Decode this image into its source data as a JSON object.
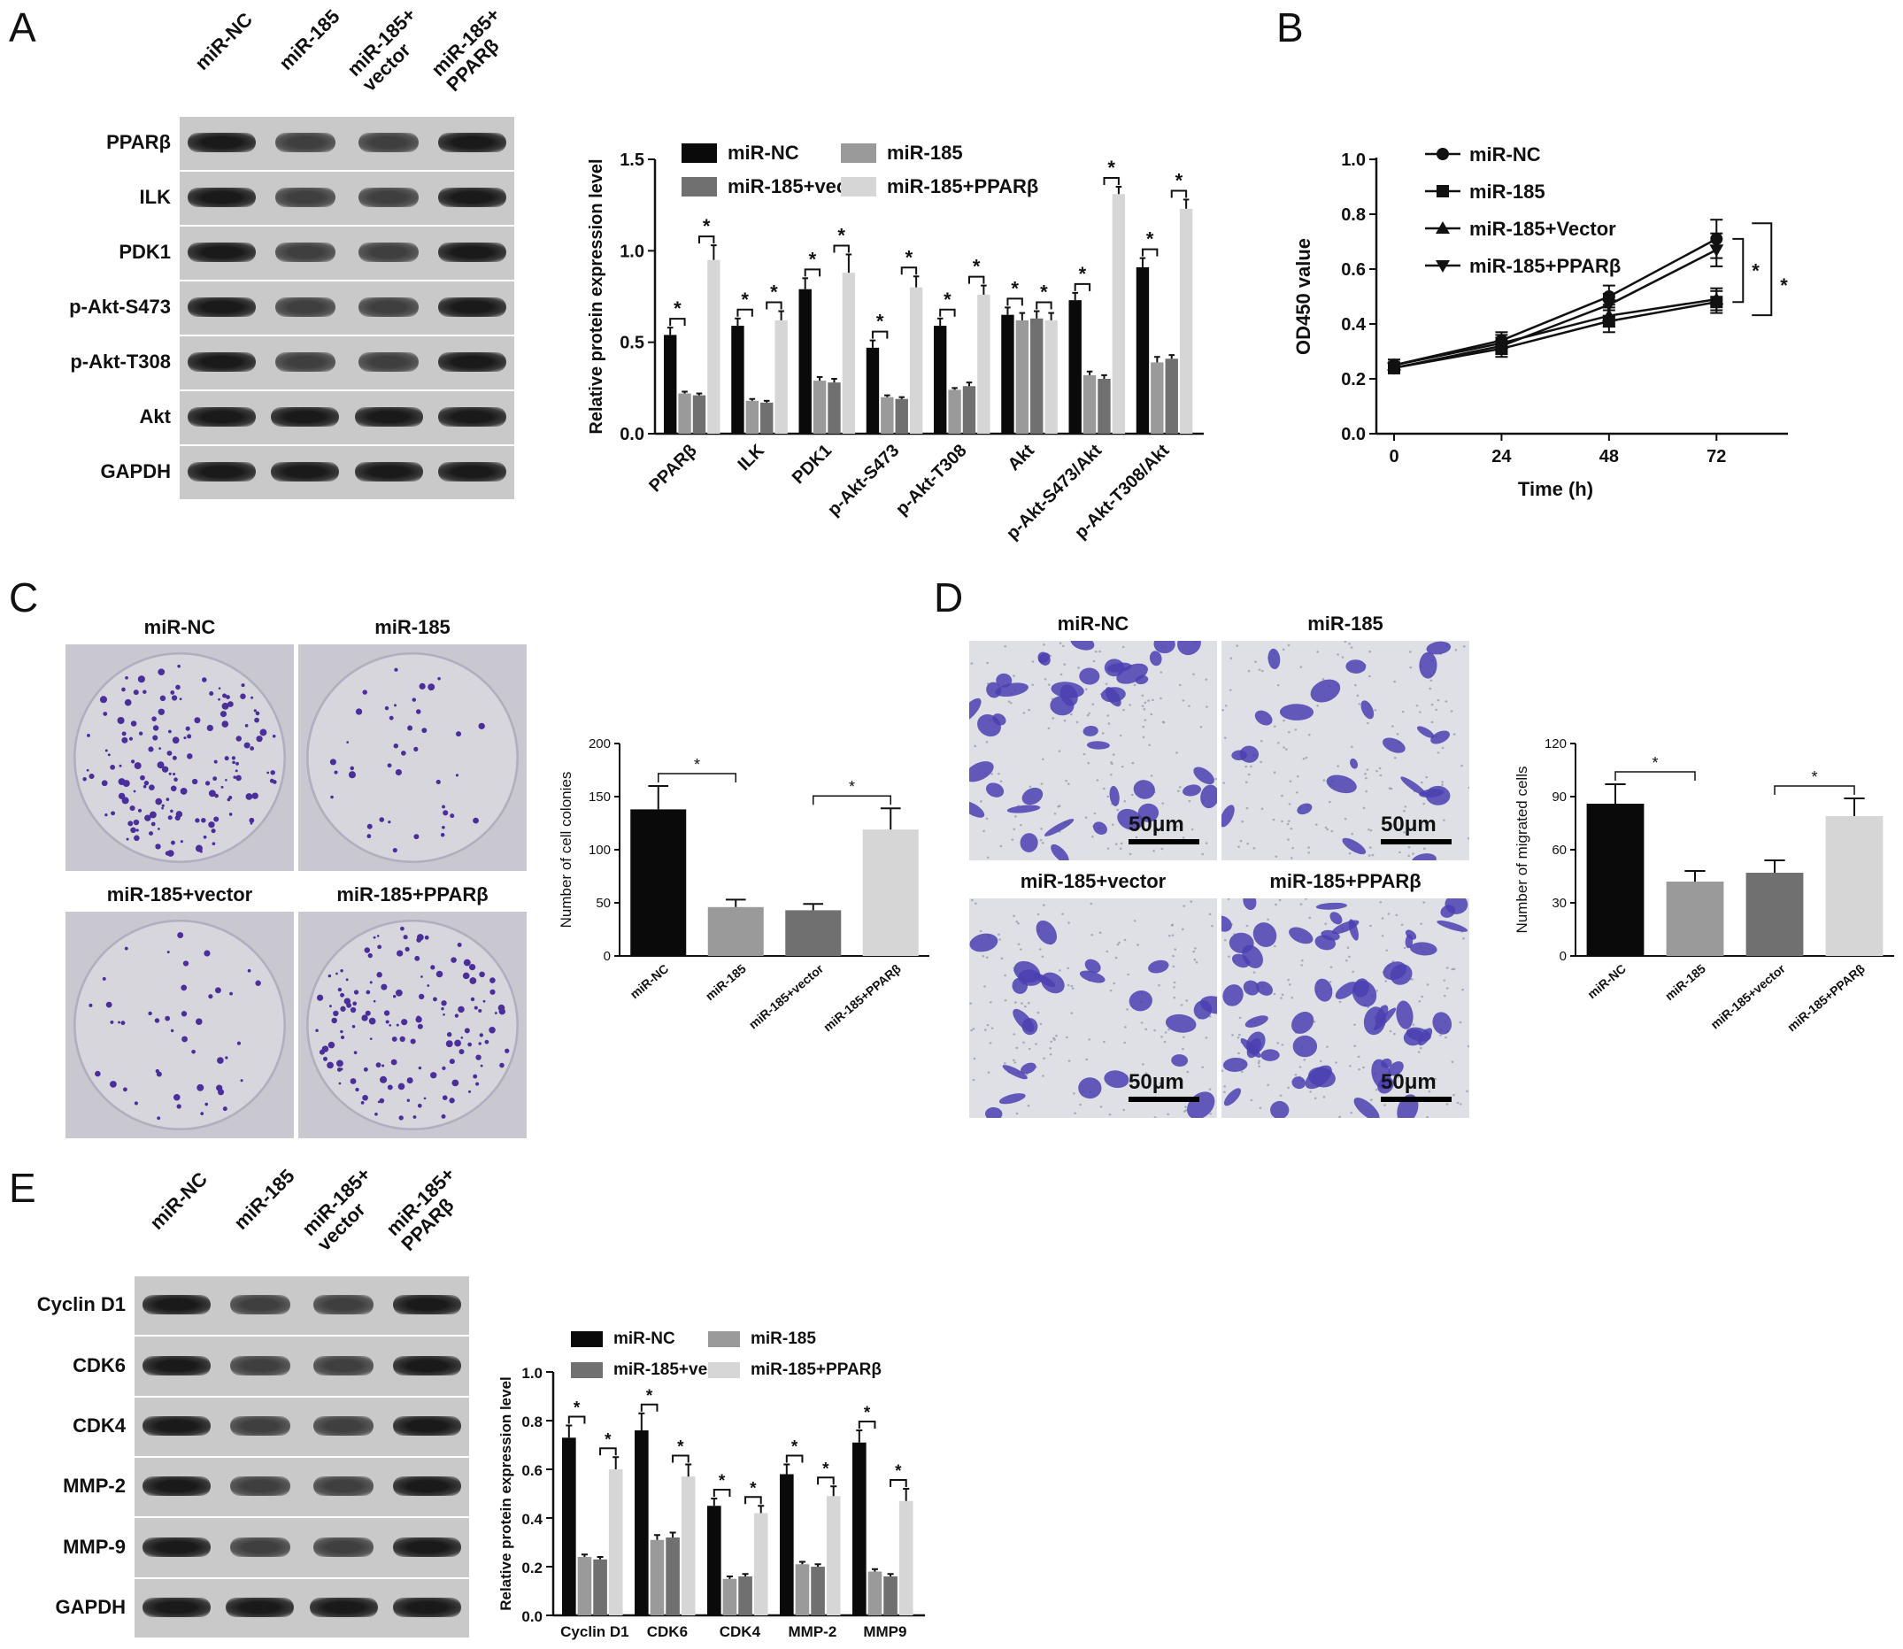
{
  "panels": {
    "A": "A",
    "B": "B",
    "C": "C",
    "D": "D",
    "E": "E"
  },
  "blotA": {
    "lanes": [
      "miR-NC",
      "miR-185",
      "miR-185+\nvector",
      "miR-185+\nPPARβ"
    ],
    "rows": [
      "PPARβ",
      "ILK",
      "PDK1",
      "p-Akt-S473",
      "p-Akt-T308",
      "Akt",
      "GAPDH"
    ]
  },
  "blotE": {
    "lanes": [
      "miR-NC",
      "miR-185",
      "miR-185+\nvector",
      "miR-185+\nPPARβ"
    ],
    "rows": [
      "Cyclin D1",
      "CDK6",
      "CDK4",
      "MMP-2",
      "MMP-9",
      "GAPDH"
    ]
  },
  "photosC": {
    "titles": [
      "miR-NC",
      "miR-185",
      "miR-185+vector",
      "miR-185+PPARβ"
    ]
  },
  "photosD": {
    "titles": [
      "miR-NC",
      "miR-185",
      "miR-185+vector",
      "miR-185+PPARβ"
    ],
    "scalebar": "50μm"
  },
  "colors": {
    "miR-NC": "#0a0a0a",
    "miR-185": "#9a9a9a",
    "miR-185+vector": "#707070",
    "miR-185+PPARβ": "#d6d6d6"
  },
  "chart_data": [
    {
      "id": "A",
      "type": "bar",
      "ylabel": "Relative protein expression level",
      "ylim": [
        0,
        1.5
      ],
      "yticks": [
        "0.0",
        "0.5",
        "1.0",
        "1.5"
      ],
      "categories": [
        "PPARβ",
        "ILK",
        "PDK1",
        "p-Akt-S473",
        "p-Akt-T308",
        "Akt",
        "p-Akt-S473/Akt",
        "p-Akt-T308/Akt"
      ],
      "series": [
        {
          "name": "miR-NC",
          "values": [
            0.54,
            0.59,
            0.79,
            0.47,
            0.59,
            0.65,
            0.73,
            0.91
          ],
          "err": [
            0.04,
            0.04,
            0.06,
            0.04,
            0.04,
            0.04,
            0.04,
            0.05
          ]
        },
        {
          "name": "miR-185",
          "values": [
            0.22,
            0.18,
            0.29,
            0.2,
            0.24,
            0.62,
            0.32,
            0.39
          ],
          "err": [
            0.01,
            0.01,
            0.02,
            0.01,
            0.01,
            0.04,
            0.02,
            0.03
          ]
        },
        {
          "name": "miR-185+vector",
          "values": [
            0.21,
            0.17,
            0.28,
            0.19,
            0.26,
            0.63,
            0.3,
            0.41
          ],
          "err": [
            0.01,
            0.01,
            0.02,
            0.01,
            0.02,
            0.04,
            0.02,
            0.02
          ]
        },
        {
          "name": "miR-185+PPARβ",
          "values": [
            0.95,
            0.62,
            0.88,
            0.8,
            0.76,
            0.62,
            1.31,
            1.23
          ],
          "err": [
            0.08,
            0.05,
            0.1,
            0.06,
            0.05,
            0.04,
            0.04,
            0.05
          ]
        }
      ],
      "annotations": "*",
      "legend": "top"
    },
    {
      "id": "B",
      "type": "line",
      "xlabel": "Time (h)",
      "ylabel": "OD450 value",
      "x": [
        0,
        24,
        48,
        72
      ],
      "xticks": [
        "0",
        "24",
        "48",
        "72"
      ],
      "ylim": [
        0,
        1.0
      ],
      "yticks": [
        "0.0",
        "0.2",
        "0.4",
        "0.6",
        "0.8",
        "1.0"
      ],
      "series": [
        {
          "name": "miR-NC",
          "values": [
            0.25,
            0.34,
            0.5,
            0.71
          ],
          "err": [
            0.02,
            0.03,
            0.04,
            0.07
          ]
        },
        {
          "name": "miR-185",
          "values": [
            0.24,
            0.31,
            0.41,
            0.48
          ],
          "err": [
            0.02,
            0.03,
            0.04,
            0.04
          ]
        },
        {
          "name": "miR-185+Vector",
          "values": [
            0.25,
            0.33,
            0.43,
            0.49
          ],
          "err": [
            0.02,
            0.03,
            0.04,
            0.04
          ]
        },
        {
          "name": "miR-185+PPARβ",
          "values": [
            0.24,
            0.32,
            0.47,
            0.67
          ],
          "err": [
            0.02,
            0.03,
            0.04,
            0.06
          ]
        }
      ],
      "annotations": "*",
      "legend": "top-left"
    },
    {
      "id": "C",
      "type": "bar",
      "ylabel": "Number of cell colonies",
      "ylim": [
        0,
        200
      ],
      "yticks": [
        "0",
        "50",
        "100",
        "150",
        "200"
      ],
      "categories": [
        "miR-NC",
        "miR-185",
        "miR-185+vector",
        "miR-185+PPARβ"
      ],
      "values": [
        138,
        46,
        43,
        119
      ],
      "err": [
        22,
        7,
        6,
        20
      ],
      "annotations": "*"
    },
    {
      "id": "D",
      "type": "bar",
      "ylabel": "Number of migrated cells",
      "ylim": [
        0,
        120
      ],
      "yticks": [
        "0",
        "30",
        "60",
        "90",
        "120"
      ],
      "categories": [
        "miR-NC",
        "miR-185",
        "miR-185+vector",
        "miR-185+PPARβ"
      ],
      "values": [
        86,
        42,
        47,
        79
      ],
      "err": [
        11,
        6,
        7,
        10
      ],
      "annotations": "*"
    },
    {
      "id": "E",
      "type": "bar",
      "ylabel": "Relative protein expression level",
      "ylim": [
        0,
        1.0
      ],
      "yticks": [
        "0.0",
        "0.2",
        "0.4",
        "0.6",
        "0.8",
        "1.0"
      ],
      "categories": [
        "Cyclin D1",
        "CDK6",
        "CDK4",
        "MMP-2",
        "MMP9"
      ],
      "series": [
        {
          "name": "miR-NC",
          "values": [
            0.73,
            0.76,
            0.45,
            0.58,
            0.71
          ],
          "err": [
            0.05,
            0.07,
            0.03,
            0.04,
            0.05
          ]
        },
        {
          "name": "miR-185",
          "values": [
            0.24,
            0.31,
            0.15,
            0.21,
            0.18
          ],
          "err": [
            0.01,
            0.02,
            0.01,
            0.01,
            0.01
          ]
        },
        {
          "name": "miR-185+vector",
          "values": [
            0.23,
            0.32,
            0.16,
            0.2,
            0.16
          ],
          "err": [
            0.01,
            0.02,
            0.01,
            0.01,
            0.01
          ]
        },
        {
          "name": "miR-185+PPARβ",
          "values": [
            0.6,
            0.57,
            0.42,
            0.49,
            0.47
          ],
          "err": [
            0.05,
            0.05,
            0.03,
            0.04,
            0.05
          ]
        }
      ],
      "annotations": "*",
      "legend": "top"
    }
  ]
}
